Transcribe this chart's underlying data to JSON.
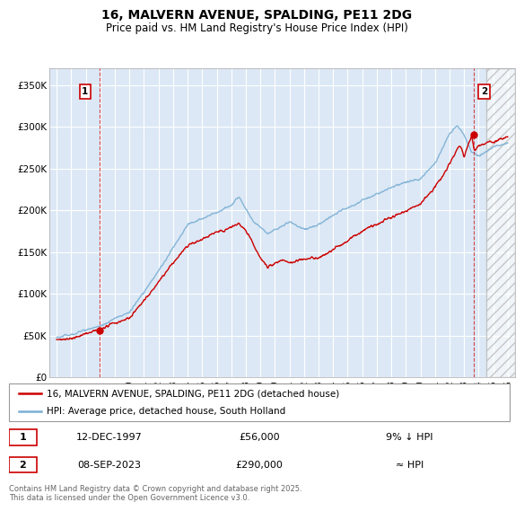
{
  "title": "16, MALVERN AVENUE, SPALDING, PE11 2DG",
  "subtitle": "Price paid vs. HM Land Registry's House Price Index (HPI)",
  "background_color": "#ffffff",
  "plot_bg_color": "#dce8f5",
  "grid_color": "#ffffff",
  "hpi_color": "#7aafd4",
  "price_color": "#cc0000",
  "annotation_box_color": "#cc0000",
  "ylim": [
    0,
    370000
  ],
  "yticks": [
    0,
    50000,
    100000,
    150000,
    200000,
    250000,
    300000,
    350000
  ],
  "ytick_labels": [
    "£0",
    "£50K",
    "£100K",
    "£150K",
    "£200K",
    "£250K",
    "£300K",
    "£350K"
  ],
  "xlim_start": 1994.5,
  "xlim_end": 2026.5,
  "xticks": [
    1995,
    1996,
    1997,
    1998,
    1999,
    2000,
    2001,
    2002,
    2003,
    2004,
    2005,
    2006,
    2007,
    2008,
    2009,
    2010,
    2011,
    2012,
    2013,
    2014,
    2015,
    2016,
    2017,
    2018,
    2019,
    2020,
    2021,
    2022,
    2023,
    2024,
    2025,
    2026
  ],
  "sale1_x": 1997.95,
  "sale1_y": 56000,
  "sale1_label": "1",
  "sale1_date": "12-DEC-1997",
  "sale1_price": "£56,000",
  "sale1_hpi": "9% ↓ HPI",
  "sale2_x": 2023.68,
  "sale2_y": 290000,
  "sale2_label": "2",
  "sale2_date": "08-SEP-2023",
  "sale2_price": "£290,000",
  "sale2_hpi": "≈ HPI",
  "legend_line1": "16, MALVERN AVENUE, SPALDING, PE11 2DG (detached house)",
  "legend_line2": "HPI: Average price, detached house, South Holland",
  "footer": "Contains HM Land Registry data © Crown copyright and database right 2025.\nThis data is licensed under the Open Government Licence v3.0.",
  "vline_color": "#cc0000",
  "hatched_start": 2024.5
}
